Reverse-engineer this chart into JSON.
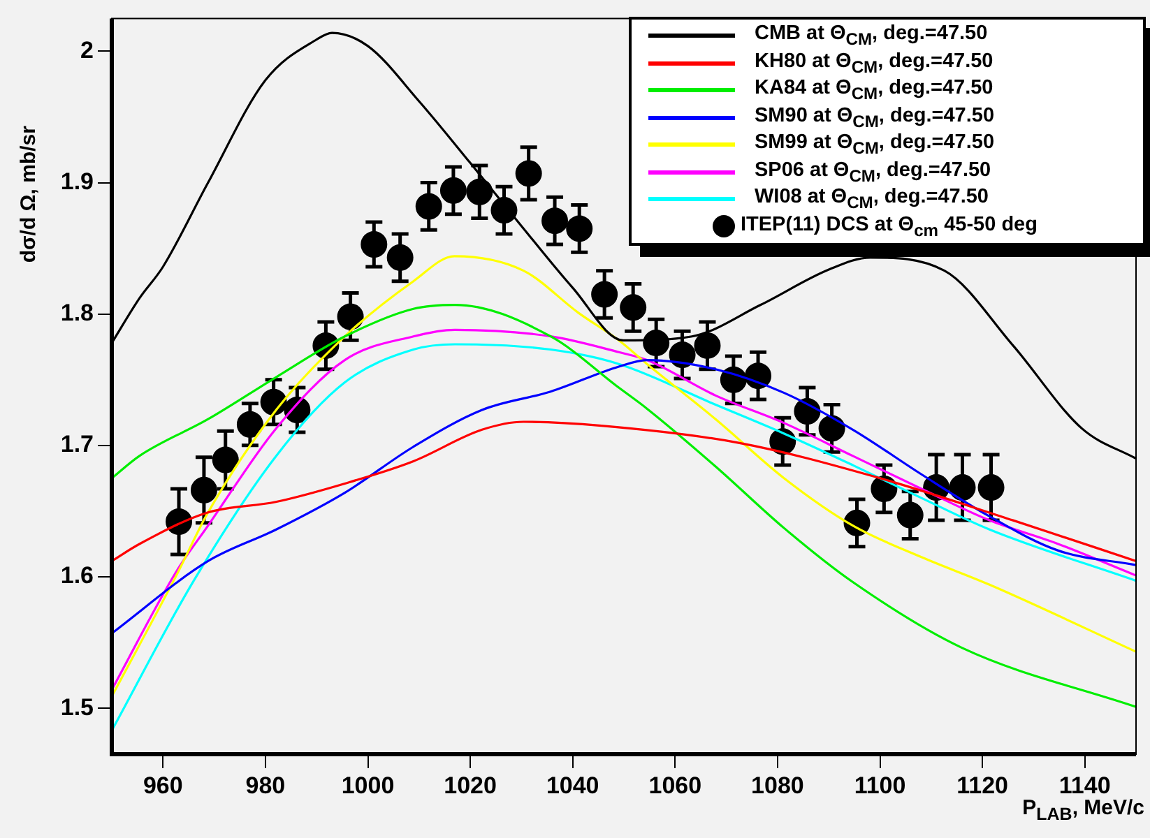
{
  "chart_data": {
    "type": "line",
    "xlabel": "P$_{LAB}$, MeV/c",
    "ylabel": "dσ/d Ω, mb/sr",
    "xlim": [
      950,
      1150
    ],
    "xticks": [
      960,
      980,
      1000,
      1020,
      1040,
      1060,
      1080,
      1100,
      1120,
      1140
    ],
    "ylim": [
      1.465,
      2.025
    ],
    "yticks": [
      1.5,
      1.6,
      1.7,
      1.8,
      1.9,
      2
    ],
    "grid": false,
    "legend": "top right",
    "series": [
      {
        "name": "CMB  at Θ$_{CM}$, deg.=47.50",
        "color": "#000000",
        "x": [
          950,
          955.4,
          960,
          968.8,
          980,
          990,
          993,
          1000,
          1010,
          1020,
          1030,
          1040,
          1049.9,
          1063.3,
          1076.7,
          1090.1,
          1098.1,
          1112.6,
          1126,
          1139.4,
          1150
        ],
        "values": [
          1.778,
          1.812,
          1.836,
          1.9,
          1.978,
          2.009,
          2.014,
          2.004,
          1.962,
          1.915,
          1.867,
          1.82,
          1.78,
          1.783,
          1.807,
          1.834,
          1.843,
          1.833,
          1.776,
          1.713,
          1.69
        ]
      },
      {
        "name": "KH80  at Θ$_{CM}$, deg.=47.50",
        "color": "#ff0000",
        "x": [
          950,
          955.4,
          968.8,
          982,
          995.5,
          1008.9,
          1022.3,
          1030.4,
          1045.6,
          1072.4,
          1099.2,
          1126,
          1150
        ],
        "values": [
          1.612,
          1.625,
          1.649,
          1.657,
          1.671,
          1.688,
          1.712,
          1.718,
          1.715,
          1.702,
          1.676,
          1.643,
          1.612
        ]
      },
      {
        "name": "KA84  at Θ$_{CM}$, deg.=47.50",
        "color": "#00ee00",
        "x": [
          950,
          955.4,
          968.8,
          982.1,
          995.5,
          1008.9,
          1017,
          1035.7,
          1049,
          1054.5,
          1067.9,
          1081.3,
          1094.7,
          1116,
          1150
        ],
        "values": [
          1.675,
          1.692,
          1.72,
          1.752,
          1.783,
          1.804,
          1.807,
          1.783,
          1.744,
          1.728,
          1.684,
          1.637,
          1.596,
          1.546,
          1.501
        ]
      },
      {
        "name": "SM90  at Θ$_{CM}$, deg.=47.50",
        "color": "#0000ff",
        "x": [
          950,
          968.8,
          982.1,
          995.5,
          1008.9,
          1022.3,
          1035.7,
          1049,
          1054.5,
          1067.9,
          1081.3,
          1094.7,
          1108.1,
          1121.4,
          1134.8,
          1150
        ],
        "values": [
          1.557,
          1.612,
          1.636,
          1.664,
          1.699,
          1.727,
          1.741,
          1.76,
          1.765,
          1.758,
          1.74,
          1.712,
          1.678,
          1.646,
          1.62,
          1.609
        ]
      },
      {
        "name": "SM99  at Θ$_{CM}$, deg.=47.50",
        "color": "#ffff00",
        "x": [
          950,
          962.6,
          968.8,
          982.1,
          995.5,
          1008.9,
          1016.9,
          1030.4,
          1041.1,
          1049,
          1054.5,
          1067.9,
          1081.3,
          1094.7,
          1108.1,
          1121.4,
          1150
        ],
        "values": [
          1.509,
          1.601,
          1.649,
          1.727,
          1.783,
          1.825,
          1.844,
          1.833,
          1.801,
          1.78,
          1.762,
          1.72,
          1.675,
          1.639,
          1.615,
          1.594,
          1.543
        ]
      },
      {
        "name": "SP06  at Θ$_{CM}$, deg.=47.50",
        "color": "#ff00ff",
        "x": [
          950,
          962.6,
          968.8,
          982.1,
          995.5,
          1008.9,
          1017,
          1035.7,
          1049,
          1054.5,
          1067.9,
          1081.3,
          1094.7,
          1108.1,
          1121.4,
          1134.8,
          1150
        ],
        "values": [
          1.514,
          1.604,
          1.639,
          1.713,
          1.765,
          1.783,
          1.788,
          1.783,
          1.771,
          1.765,
          1.738,
          1.717,
          1.692,
          1.667,
          1.643,
          1.625,
          1.601
        ]
      },
      {
        "name": "WI08  at Θ$_{CM}$, deg.=47.50",
        "color": "#00ffff",
        "x": [
          950,
          966,
          982.1,
          995.5,
          1008.9,
          1017,
          1035.7,
          1049,
          1067.9,
          1081.3,
          1094.7,
          1108.1,
          1121.4,
          1150
        ],
        "values": [
          1.483,
          1.597,
          1.692,
          1.748,
          1.773,
          1.777,
          1.773,
          1.762,
          1.731,
          1.709,
          1.685,
          1.66,
          1.636,
          1.597
        ]
      },
      {
        "name": "ITEP(11) DCS at Θ$_{cm}$ 45-50 deg",
        "type": "scatter",
        "marker": "circle",
        "color": "#000000",
        "x": [
          963.1,
          968,
          972.2,
          977,
          981.6,
          986.2,
          991.8,
          996.6,
          1001.2,
          1006.3,
          1011.9,
          1016.7,
          1021.8,
          1026.6,
          1031.4,
          1036.5,
          1041.3,
          1046.2,
          1051.8,
          1056.3,
          1061.4,
          1066.3,
          1071.4,
          1076.2,
          1081,
          1085.8,
          1090.6,
          1095.5,
          1100.8,
          1105.9,
          1111,
          1116.1,
          1121.7
        ],
        "values": [
          1.642,
          1.666,
          1.689,
          1.716,
          1.733,
          1.727,
          1.776,
          1.798,
          1.853,
          1.843,
          1.882,
          1.894,
          1.893,
          1.879,
          1.907,
          1.871,
          1.865,
          1.815,
          1.805,
          1.778,
          1.769,
          1.776,
          1.75,
          1.753,
          1.703,
          1.726,
          1.713,
          1.641,
          1.667,
          1.647,
          1.668,
          1.668,
          1.668
        ],
        "errors": [
          0.025,
          0.025,
          0.022,
          0.016,
          0.017,
          0.017,
          0.018,
          0.018,
          0.017,
          0.018,
          0.018,
          0.018,
          0.02,
          0.018,
          0.02,
          0.018,
          0.018,
          0.018,
          0.018,
          0.018,
          0.018,
          0.018,
          0.018,
          0.018,
          0.018,
          0.018,
          0.018,
          0.018,
          0.018,
          0.018,
          0.025,
          0.025,
          0.025
        ]
      }
    ]
  }
}
